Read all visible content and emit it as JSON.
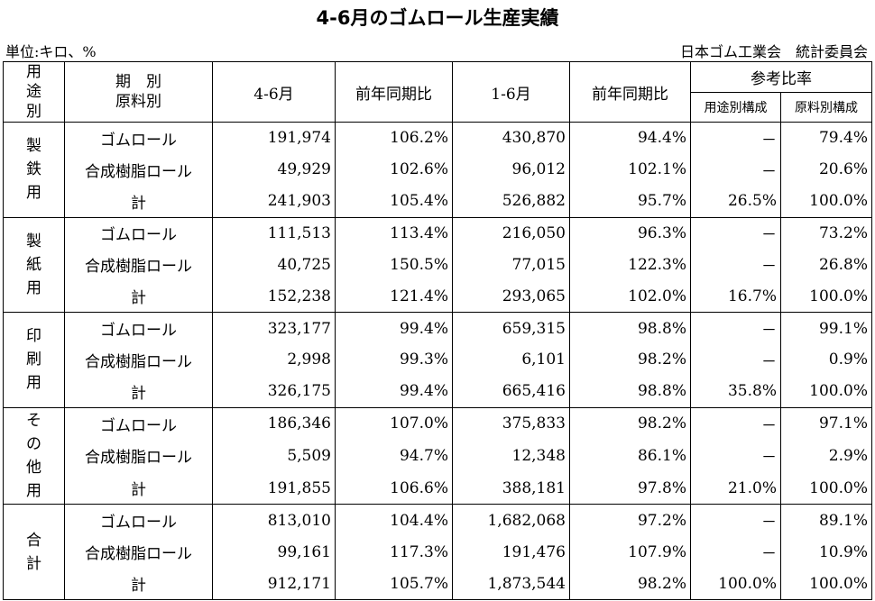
{
  "title": "4-6月のゴムロール生産実績",
  "unit_label": "単位:キロ、%",
  "source": "日本ゴム工業会　統計委員会",
  "headers": {
    "category": [
      "用",
      "途",
      "別"
    ],
    "period_line1": "期　別",
    "period_line2": "原料別",
    "q": "4-6月",
    "q_yoy": "前年同期比",
    "ytd": "1-6月",
    "ytd_yoy": "前年同期比",
    "ref": "参考比率",
    "ref_use": "用途別構成",
    "ref_material": "原料別構成"
  },
  "groups": [
    {
      "label": [
        "製",
        "鉄",
        "用"
      ],
      "rows": [
        {
          "name": "ゴムロール",
          "q": "191,974",
          "q_yoy": "106.2%",
          "ytd": "430,870",
          "ytd_yoy": "94.4%",
          "use": "－",
          "material": "79.4%"
        },
        {
          "name": "合成樹脂ロール",
          "q": "49,929",
          "q_yoy": "102.6%",
          "ytd": "96,012",
          "ytd_yoy": "102.1%",
          "use": "－",
          "material": "20.6%"
        },
        {
          "name": "計",
          "q": "241,903",
          "q_yoy": "105.4%",
          "ytd": "526,882",
          "ytd_yoy": "95.7%",
          "use": "26.5%",
          "material": "100.0%"
        }
      ]
    },
    {
      "label": [
        "製",
        "紙",
        "用"
      ],
      "rows": [
        {
          "name": "ゴムロール",
          "q": "111,513",
          "q_yoy": "113.4%",
          "ytd": "216,050",
          "ytd_yoy": "96.3%",
          "use": "－",
          "material": "73.2%"
        },
        {
          "name": "合成樹脂ロール",
          "q": "40,725",
          "q_yoy": "150.5%",
          "ytd": "77,015",
          "ytd_yoy": "122.3%",
          "use": "－",
          "material": "26.8%"
        },
        {
          "name": "計",
          "q": "152,238",
          "q_yoy": "121.4%",
          "ytd": "293,065",
          "ytd_yoy": "102.0%",
          "use": "16.7%",
          "material": "100.0%"
        }
      ]
    },
    {
      "label": [
        "印",
        "刷",
        "用"
      ],
      "rows": [
        {
          "name": "ゴムロール",
          "q": "323,177",
          "q_yoy": "99.4%",
          "ytd": "659,315",
          "ytd_yoy": "98.8%",
          "use": "－",
          "material": "99.1%"
        },
        {
          "name": "合成樹脂ロール",
          "q": "2,998",
          "q_yoy": "99.3%",
          "ytd": "6,101",
          "ytd_yoy": "98.2%",
          "use": "－",
          "material": "0.9%"
        },
        {
          "name": "計",
          "q": "326,175",
          "q_yoy": "99.4%",
          "ytd": "665,416",
          "ytd_yoy": "98.8%",
          "use": "35.8%",
          "material": "100.0%"
        }
      ]
    },
    {
      "label": [
        "そ",
        "の",
        "他",
        "用"
      ],
      "rows": [
        {
          "name": "ゴムロール",
          "q": "186,346",
          "q_yoy": "107.0%",
          "ytd": "375,833",
          "ytd_yoy": "98.2%",
          "use": "－",
          "material": "97.1%"
        },
        {
          "name": "合成樹脂ロール",
          "q": "5,509",
          "q_yoy": "94.7%",
          "ytd": "12,348",
          "ytd_yoy": "86.1%",
          "use": "－",
          "material": "2.9%"
        },
        {
          "name": "計",
          "q": "191,855",
          "q_yoy": "106.6%",
          "ytd": "388,181",
          "ytd_yoy": "97.8%",
          "use": "21.0%",
          "material": "100.0%"
        }
      ]
    },
    {
      "label": [
        "合",
        "計"
      ],
      "rows": [
        {
          "name": "ゴムロール",
          "q": "813,010",
          "q_yoy": "104.4%",
          "ytd": "1,682,068",
          "ytd_yoy": "97.2%",
          "use": "－",
          "material": "89.1%"
        },
        {
          "name": "合成樹脂ロール",
          "q": "99,161",
          "q_yoy": "117.3%",
          "ytd": "191,476",
          "ytd_yoy": "107.9%",
          "use": "－",
          "material": "10.9%"
        },
        {
          "name": "計",
          "q": "912,171",
          "q_yoy": "105.7%",
          "ytd": "1,873,544",
          "ytd_yoy": "98.2%",
          "use": "100.0%",
          "material": "100.0%"
        }
      ]
    }
  ]
}
